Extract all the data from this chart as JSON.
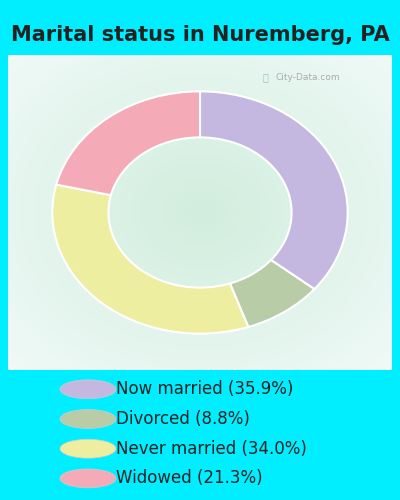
{
  "title": "Marital status in Nuremberg, PA",
  "slices": [
    35.9,
    8.8,
    34.0,
    21.3
  ],
  "labels": [
    "Now married (35.9%)",
    "Divorced (8.8%)",
    "Never married (34.0%)",
    "Widowed (21.3%)"
  ],
  "colors": [
    "#c5b8e0",
    "#b8cca8",
    "#eeeea0",
    "#f5aab8"
  ],
  "chart_bg": "#d8ede2",
  "outer_bg": "#00eeff",
  "title_color": "#222222",
  "watermark_color": "#aaaaaa",
  "start_angle": 90,
  "title_fontsize": 15,
  "legend_fontsize": 12,
  "donut_width": 0.38
}
